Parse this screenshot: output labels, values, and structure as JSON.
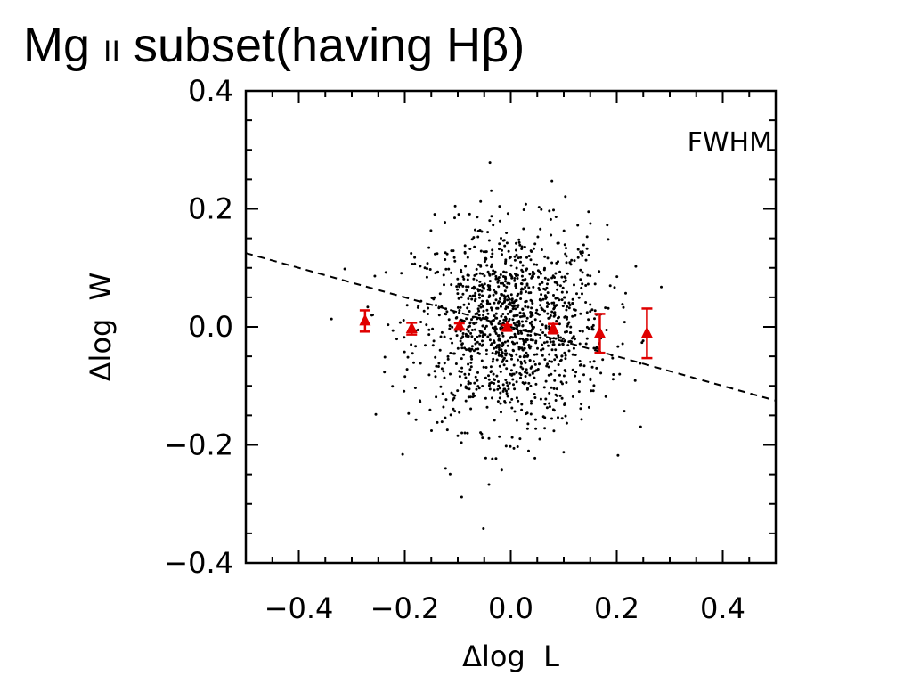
{
  "slide": {
    "title_prefix": "Mg ",
    "title_small": "II",
    "title_suffix": " subset(having Hβ)"
  },
  "chart_data": {
    "type": "scatter",
    "xlabel": "Δlog  L",
    "ylabel": "Δlog  W",
    "annotation": "FWHM",
    "xlim": [
      -0.5,
      0.5
    ],
    "ylim": [
      -0.4,
      0.4
    ],
    "xticks": [
      -0.4,
      -0.2,
      0.0,
      0.2,
      0.4
    ],
    "xtick_labels": [
      "−0.4",
      "−0.2",
      "0.0",
      "0.2",
      "0.4"
    ],
    "yticks": [
      -0.4,
      -0.2,
      0.0,
      0.2,
      0.4
    ],
    "ytick_labels": [
      "−0.4",
      "−0.2",
      "0.0",
      "0.2",
      "0.4"
    ],
    "fit_line": {
      "x": [
        -0.5,
        0.5
      ],
      "y": [
        0.125,
        -0.125
      ],
      "style": "dashed"
    },
    "binned_means": {
      "color": "#e00000",
      "marker": "triangle",
      "points": [
        {
          "x": -0.275,
          "y": 0.01,
          "err": 0.018
        },
        {
          "x": -0.187,
          "y": -0.003,
          "err": 0.01
        },
        {
          "x": -0.097,
          "y": 0.001,
          "err": 0.005
        },
        {
          "x": -0.007,
          "y": -0.001,
          "err": 0.004
        },
        {
          "x": 0.08,
          "y": -0.003,
          "err": 0.008
        },
        {
          "x": 0.168,
          "y": -0.011,
          "err": 0.033
        },
        {
          "x": 0.257,
          "y": -0.011,
          "err": 0.042
        }
      ]
    },
    "scatter": {
      "color": "#000000",
      "n_points": 1300,
      "x_center": 0.0,
      "x_sd": 0.09,
      "y_center": 0.0,
      "y_sd": 0.085
    }
  }
}
